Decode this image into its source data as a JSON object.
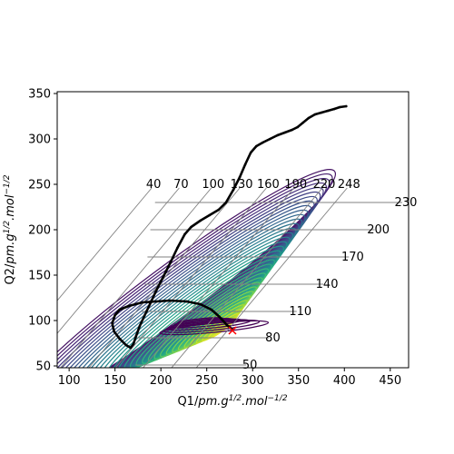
{
  "chart_data": {
    "type": "line",
    "xlabel": "Q1/pm.g^1/2.mol^-1/2",
    "ylabel": "Q2/pm.g^1/2.mol^-1/2",
    "xlabel_parts": {
      "base": "Q1/",
      "a": "pm.g",
      "a_sup": "1/2",
      "b": ".mol",
      "b_sup": "−1/2"
    },
    "ylabel_parts": {
      "base": "Q2/",
      "a": "pm.g",
      "a_sup": "1/2",
      "b": ".mol",
      "b_sup": "−1/2"
    },
    "xlim": [
      87,
      470
    ],
    "ylim": [
      48,
      352
    ],
    "x_ticks": [
      100,
      150,
      200,
      250,
      300,
      350,
      400,
      450
    ],
    "y_ticks": [
      50,
      100,
      150,
      200,
      250,
      300,
      350
    ],
    "x_tick_labels": [
      "100",
      "150",
      "200",
      "250",
      "300",
      "350",
      "400",
      "450"
    ],
    "y_tick_labels": [
      "50",
      "100",
      "150",
      "200",
      "250",
      "300",
      "350"
    ],
    "grid_top_labels": [
      {
        "text": "40",
        "x": 192,
        "y": 246
      },
      {
        "text": "70",
        "x": 222,
        "y": 246
      },
      {
        "text": "100",
        "x": 257,
        "y": 246
      },
      {
        "text": "130",
        "x": 288,
        "y": 246
      },
      {
        "text": "160",
        "x": 317,
        "y": 246
      },
      {
        "text": "190",
        "x": 347,
        "y": 246
      },
      {
        "text": "220",
        "x": 378,
        "y": 246
      },
      {
        "text": "248",
        "x": 405,
        "y": 246
      }
    ],
    "grid_side_labels": [
      {
        "text": "50",
        "x": 297,
        "y": 51
      },
      {
        "text": "80",
        "x": 322,
        "y": 81
      },
      {
        "text": "110",
        "x": 352,
        "y": 110
      },
      {
        "text": "140",
        "x": 381,
        "y": 140
      },
      {
        "text": "170",
        "x": 409,
        "y": 170
      },
      {
        "text": "200",
        "x": 437,
        "y": 200
      },
      {
        "text": "230",
        "x": 467,
        "y": 230
      }
    ],
    "trajectory": [
      [
        278,
        90
      ],
      [
        272,
        95
      ],
      [
        264,
        104
      ],
      [
        255,
        112
      ],
      [
        243,
        118
      ],
      [
        228,
        121
      ],
      [
        210,
        122
      ],
      [
        195,
        121
      ],
      [
        180,
        120
      ],
      [
        165,
        116
      ],
      [
        155,
        112
      ],
      [
        150,
        106
      ],
      [
        147,
        97
      ],
      [
        149,
        88
      ],
      [
        155,
        80
      ],
      [
        162,
        73
      ],
      [
        167,
        70
      ],
      [
        170,
        74
      ],
      [
        173,
        83
      ],
      [
        177,
        94
      ],
      [
        182,
        105
      ],
      [
        188,
        118
      ],
      [
        195,
        133
      ],
      [
        202,
        147
      ],
      [
        210,
        163
      ],
      [
        218,
        180
      ],
      [
        226,
        195
      ],
      [
        233,
        203
      ],
      [
        243,
        210
      ],
      [
        253,
        216
      ],
      [
        263,
        222
      ],
      [
        271,
        230
      ],
      [
        279,
        244
      ],
      [
        286,
        258
      ],
      [
        292,
        272
      ],
      [
        298,
        285
      ],
      [
        304,
        292
      ],
      [
        311,
        296
      ],
      [
        319,
        300
      ],
      [
        327,
        304
      ],
      [
        335,
        307
      ],
      [
        343,
        310
      ],
      [
        349,
        313
      ],
      [
        355,
        318
      ],
      [
        361,
        323
      ],
      [
        368,
        327
      ],
      [
        375,
        329
      ],
      [
        382,
        331
      ],
      [
        389,
        333
      ],
      [
        395,
        335
      ],
      [
        402,
        336
      ]
    ],
    "marker": {
      "x": 278,
      "y": 89,
      "symbol": "x",
      "color": "#ff0000"
    },
    "colors": {
      "trajectory": "#000000",
      "grid": "#808080",
      "axes": "#000000",
      "marker": "#ff0000"
    },
    "colormap": "viridis",
    "grid": true
  }
}
